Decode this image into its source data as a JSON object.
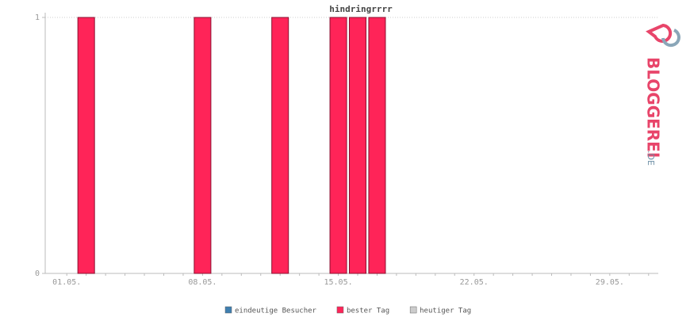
{
  "chart_data": {
    "type": "bar",
    "title": "hindringrrrr",
    "categories": [
      "01.05.",
      null,
      null,
      null,
      null,
      null,
      null,
      "08.05.",
      null,
      null,
      null,
      null,
      null,
      null,
      "15.05.",
      null,
      null,
      null,
      null,
      null,
      null,
      "22.05.",
      null,
      null,
      null,
      null,
      null,
      null,
      "29.05.",
      null,
      null
    ],
    "values": [
      0,
      1,
      0,
      0,
      0,
      0,
      0,
      1,
      0,
      0,
      0,
      1,
      0,
      0,
      1,
      1,
      1,
      0,
      0,
      0,
      0,
      0,
      0,
      0,
      0,
      0,
      0,
      0,
      0,
      0,
      0
    ],
    "color": "#ff2458",
    "ylim": [
      0,
      1
    ],
    "yticks": [
      0,
      1
    ],
    "grid": true,
    "legend": [
      {
        "name": "eindeutige Besucher",
        "color": "#3f7fb0"
      },
      {
        "name": "bester Tag",
        "color": "#ff2458"
      },
      {
        "name": "heutiger Tag",
        "color": "#cccccc"
      }
    ],
    "logo": {
      "text": "BLOGGEREI",
      "suffix": ".DE"
    }
  }
}
